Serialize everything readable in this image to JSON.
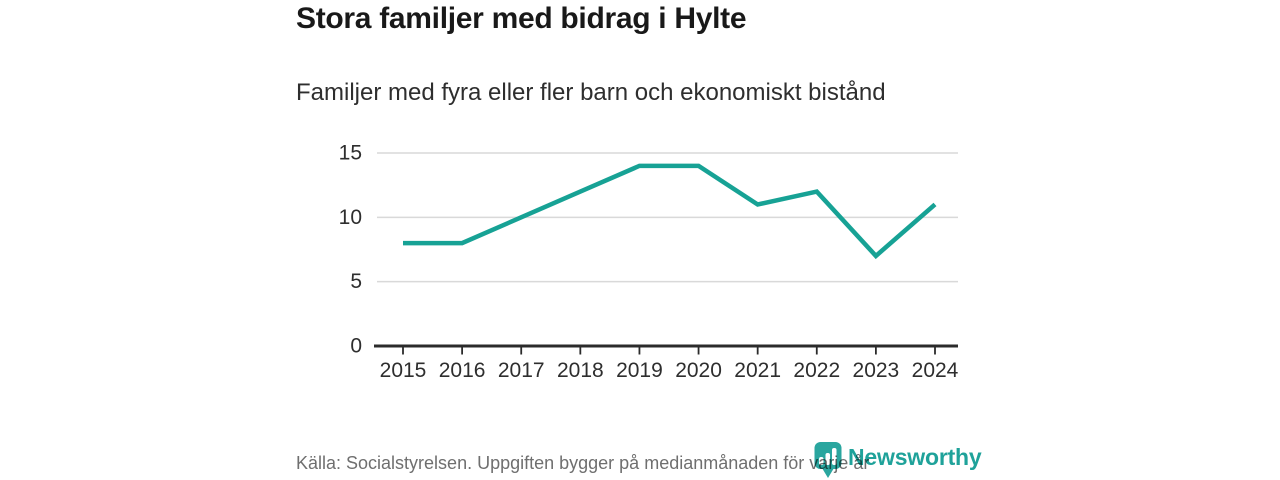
{
  "title": "Stora familjer med bidrag i Hylte",
  "subtitle": "Familjer med fyra eller fler barn och ekonomiskt bistånd",
  "source": "Källa: Socialstyrelsen. Uppgiften bygger på medianmånaden för varje år",
  "logo": {
    "brand": "Newsworthy",
    "icon": "bar-chart-badge-icon",
    "color": "#1fa29a"
  },
  "colors": {
    "line": "#17a295",
    "grid": "#d9d9d9",
    "axis": "#2b2b2b",
    "tick_label": "#2e2e2e",
    "title_text": "#191919",
    "source_text": "#6f6f6f"
  },
  "chart_data": {
    "type": "line",
    "categories": [
      "2015",
      "2016",
      "2017",
      "2018",
      "2019",
      "2020",
      "2021",
      "2022",
      "2023",
      "2024"
    ],
    "series": [
      {
        "name": "Familjer med fyra eller fler barn och ekonomiskt bistånd",
        "values": [
          8,
          8,
          10,
          12,
          14,
          14,
          11,
          12,
          7,
          11
        ]
      }
    ],
    "title": "Stora familjer med bidrag i Hylte",
    "xlabel": "",
    "ylabel": "",
    "ylim": [
      0,
      15
    ],
    "yticks": [
      0,
      5,
      10,
      15
    ],
    "grid": "horizontal",
    "legend": "none"
  }
}
